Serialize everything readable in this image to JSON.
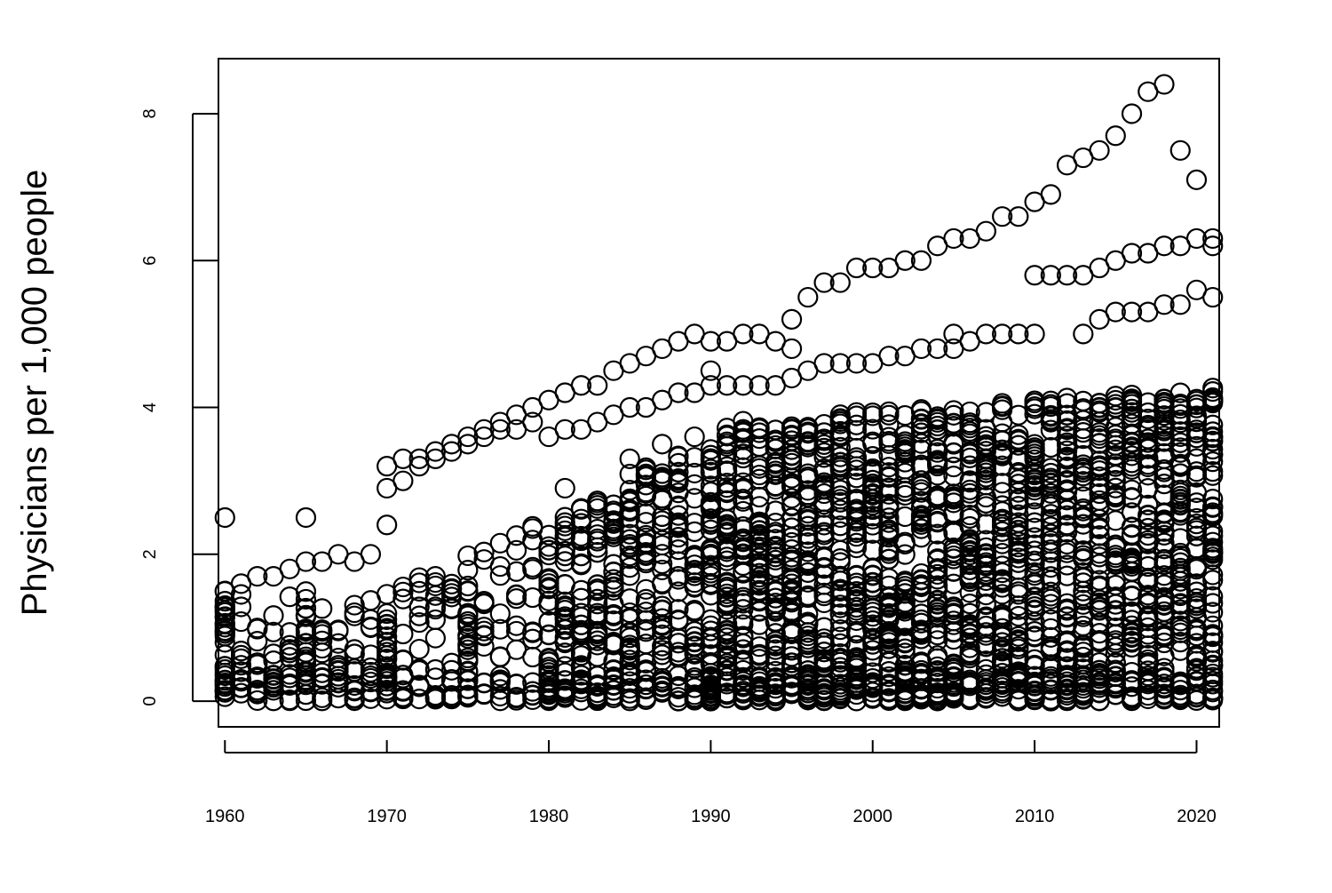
{
  "chart_data": {
    "type": "scatter",
    "title": "",
    "xlabel": "",
    "ylabel": "Physicians per 1,000 people",
    "xlim": [
      1959.6,
      2021.4
    ],
    "ylim": [
      -0.35,
      8.75
    ],
    "x_ticks": [
      1960,
      1970,
      1980,
      1990,
      2000,
      2010,
      2020
    ],
    "y_ticks": [
      0,
      2,
      4,
      6,
      8
    ],
    "grid": false,
    "legend": "none",
    "point_style": "open-circle",
    "color": "#000000",
    "series": [
      {
        "x": [
          1960,
          1961,
          1962,
          1963,
          1964,
          1965,
          1966,
          1967,
          1968,
          1969,
          1970,
          1971,
          1972,
          1973,
          1974,
          1975,
          1976,
          1977,
          1978,
          1979,
          1980,
          1981,
          1982,
          1983,
          1984,
          1985,
          1986,
          1987,
          1988,
          1989,
          1990,
          1991,
          1992,
          1993,
          1994,
          1995,
          1996,
          1997,
          1998,
          1999,
          2000,
          2001,
          2002,
          2003,
          2004,
          2005,
          2006,
          2007,
          2008,
          2009,
          2010,
          2011,
          2012,
          2013,
          2014,
          2015,
          2016,
          2017,
          2018,
          2019,
          2020,
          2021
        ],
        "y": [
          1.5,
          1.6,
          1.7,
          1.7,
          1.8,
          1.9,
          1.9,
          2.0,
          1.9,
          2.0,
          3.2,
          3.3,
          3.3,
          3.4,
          3.5,
          3.6,
          3.7,
          3.8,
          3.9,
          4.0,
          4.1,
          4.2,
          4.3,
          4.3,
          4.5,
          4.6,
          4.7,
          4.8,
          4.9,
          5.0,
          4.9,
          4.9,
          5.0,
          5.0,
          4.9,
          5.2,
          5.5,
          5.7,
          5.7,
          5.9,
          5.9,
          5.9,
          6.0,
          6.0,
          6.2,
          6.3,
          6.3,
          6.4,
          6.6,
          6.6,
          6.8,
          6.9,
          7.3,
          7.4,
          7.5,
          7.7,
          8.0,
          8.3,
          8.4,
          7.5,
          7.1,
          6.2
        ]
      },
      {
        "x": [
          1970,
          1971,
          1972,
          1973,
          1974,
          1975,
          1976,
          1977,
          1978,
          1979,
          1980,
          1981,
          1982,
          1983,
          1984,
          1985,
          1986,
          1987,
          1988,
          1989,
          1990,
          1991,
          1992,
          1993,
          1994,
          1995,
          1996,
          1997,
          1998,
          1999,
          2000,
          2001,
          2002,
          2003,
          2004,
          2005,
          2006,
          2007,
          2008,
          2009,
          2010,
          2011,
          2012,
          2013,
          2014,
          2015,
          2016,
          2017,
          2018,
          2019,
          2020,
          2021
        ],
        "y": [
          2.9,
          3.0,
          3.2,
          3.3,
          3.4,
          3.5,
          3.6,
          3.7,
          3.7,
          3.8,
          3.6,
          3.7,
          3.7,
          3.8,
          3.9,
          4.0,
          4.0,
          4.1,
          4.2,
          4.2,
          4.3,
          4.3,
          4.3,
          4.3,
          4.3,
          4.4,
          4.5,
          4.6,
          4.6,
          4.6,
          4.6,
          4.7,
          4.7,
          4.8,
          4.8,
          4.8,
          4.9,
          5.0,
          5.0,
          5.0,
          5.8,
          5.8,
          5.8,
          5.8,
          5.9,
          6.0,
          6.1,
          6.1,
          6.2,
          6.2,
          6.3,
          6.3
        ]
      },
      {
        "x": [
          1960,
          1965,
          1970,
          1973,
          1975,
          1977,
          1979,
          1981,
          1983,
          1985,
          1987,
          1989,
          1990,
          1995,
          2005,
          2010,
          2013,
          2014,
          2015,
          2016,
          2017,
          2018,
          2019,
          2020,
          2021
        ],
        "y": [
          2.5,
          2.5,
          2.4,
          0.05,
          0.7,
          0.6,
          0.6,
          2.9,
          2.7,
          3.3,
          3.5,
          3.6,
          4.5,
          4.8,
          5.0,
          5.0,
          5.0,
          5.2,
          5.3,
          5.3,
          5.3,
          5.4,
          5.4,
          5.6,
          5.5
        ]
      }
    ]
  }
}
